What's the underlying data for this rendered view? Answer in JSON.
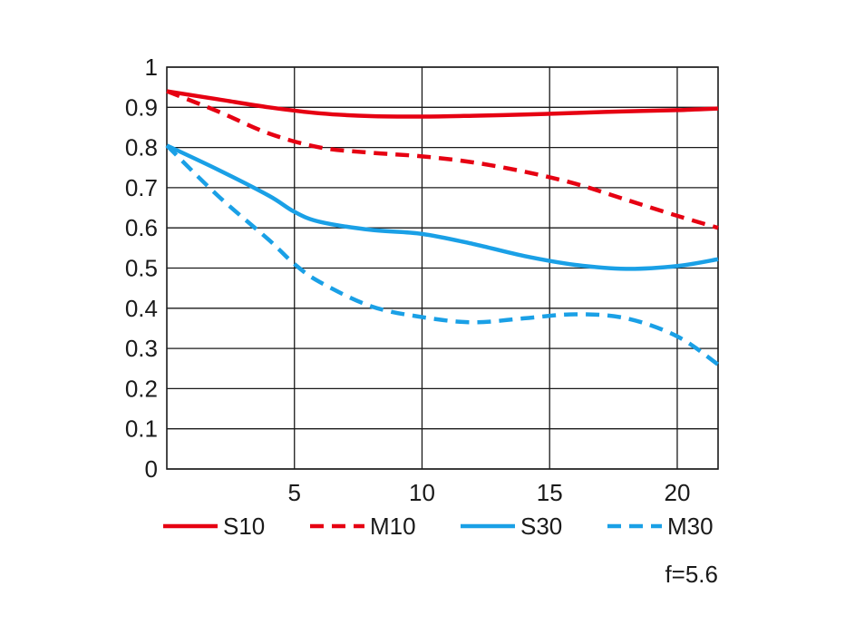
{
  "chart_data": {
    "type": "line",
    "title": "",
    "xlabel": "",
    "ylabel": "",
    "xlim": [
      0,
      21.6
    ],
    "ylim": [
      0,
      1
    ],
    "grid": true,
    "legend_position": "bottom",
    "x_ticks": [
      {
        "value": 5,
        "label": "5"
      },
      {
        "value": 10,
        "label": "10"
      },
      {
        "value": 15,
        "label": "15"
      },
      {
        "value": 20,
        "label": "20"
      }
    ],
    "y_ticks": [
      {
        "value": 0,
        "label": "0"
      },
      {
        "value": 0.1,
        "label": "0.1"
      },
      {
        "value": 0.2,
        "label": "0.2"
      },
      {
        "value": 0.3,
        "label": "0.3"
      },
      {
        "value": 0.4,
        "label": "0.4"
      },
      {
        "value": 0.5,
        "label": "0.5"
      },
      {
        "value": 0.6,
        "label": "0.6"
      },
      {
        "value": 0.7,
        "label": "0.7"
      },
      {
        "value": 0.8,
        "label": "0.8"
      },
      {
        "value": 0.9,
        "label": "0.9"
      },
      {
        "value": 1,
        "label": "1"
      }
    ],
    "series": [
      {
        "name": "S10",
        "color": "#e60012",
        "dash": "solid",
        "x": [
          0,
          2,
          4,
          6,
          8,
          10,
          12,
          14,
          16,
          18,
          20,
          21.6
        ],
        "y": [
          0.94,
          0.92,
          0.9,
          0.885,
          0.878,
          0.877,
          0.879,
          0.882,
          0.886,
          0.89,
          0.893,
          0.897
        ]
      },
      {
        "name": "M10",
        "color": "#e60012",
        "dash": "dashed",
        "x": [
          0,
          2,
          4,
          6,
          8,
          10,
          12,
          14,
          16,
          18,
          20,
          21.6
        ],
        "y": [
          0.94,
          0.89,
          0.835,
          0.8,
          0.787,
          0.778,
          0.763,
          0.74,
          0.71,
          0.67,
          0.63,
          0.6
        ]
      },
      {
        "name": "S30",
        "color": "#1aa0e6",
        "dash": "solid",
        "x": [
          0,
          2,
          4,
          5,
          6,
          8,
          10,
          12,
          14,
          16,
          18,
          20,
          21.6
        ],
        "y": [
          0.805,
          0.745,
          0.68,
          0.64,
          0.615,
          0.595,
          0.585,
          0.56,
          0.53,
          0.508,
          0.498,
          0.505,
          0.522
        ]
      },
      {
        "name": "M30",
        "color": "#1aa0e6",
        "dash": "dashed",
        "x": [
          0,
          2,
          4,
          5,
          6,
          8,
          10,
          12,
          14,
          16,
          18,
          20,
          21.6
        ],
        "y": [
          0.805,
          0.68,
          0.57,
          0.51,
          0.465,
          0.405,
          0.378,
          0.365,
          0.375,
          0.385,
          0.375,
          0.33,
          0.26
        ]
      }
    ],
    "annotation": "f=5.6"
  }
}
